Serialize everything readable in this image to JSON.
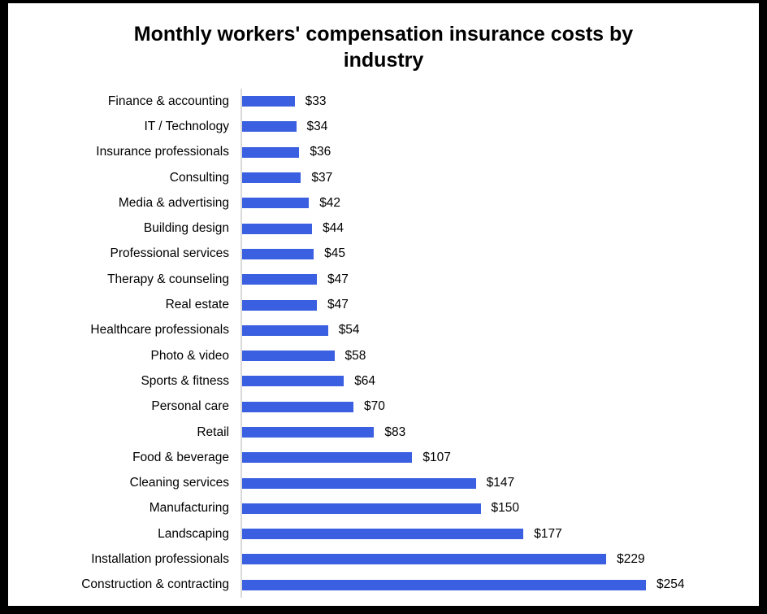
{
  "window": {
    "frame_color": "#000000",
    "background_color": "#ffffff"
  },
  "chart_data": {
    "type": "bar",
    "orientation": "horizontal",
    "title": "Monthly workers' compensation insurance costs by industry",
    "categories": [
      "Finance & accounting",
      "IT / Technology",
      "Insurance professionals",
      "Consulting",
      "Media & advertising",
      "Building design",
      "Professional services",
      "Therapy & counseling",
      "Real estate",
      "Healthcare professionals",
      "Photo & video",
      "Sports & fitness",
      "Personal care",
      "Retail",
      "Food & beverage",
      "Cleaning services",
      "Manufacturing",
      "Landscaping",
      "Installation professionals",
      "Construction & contracting"
    ],
    "values": [
      33,
      34,
      36,
      37,
      42,
      44,
      45,
      47,
      47,
      54,
      58,
      64,
      70,
      83,
      107,
      147,
      150,
      177,
      229,
      254
    ],
    "value_labels": [
      "$33",
      "$34",
      "$36",
      "$37",
      "$42",
      "$44",
      "$45",
      "$47",
      "$47",
      "$54",
      "$58",
      "$64",
      "$70",
      "$83",
      "$107",
      "$147",
      "$150",
      "$177",
      "$229",
      "$254"
    ],
    "unit_prefix": "$",
    "xlim": [
      0,
      254
    ],
    "bar_color": "#3a5fe0",
    "axis_line_color": "#d9d9d9",
    "text_color": "#000000",
    "grid": false,
    "legend": "none",
    "data_labels": "outside-end"
  }
}
